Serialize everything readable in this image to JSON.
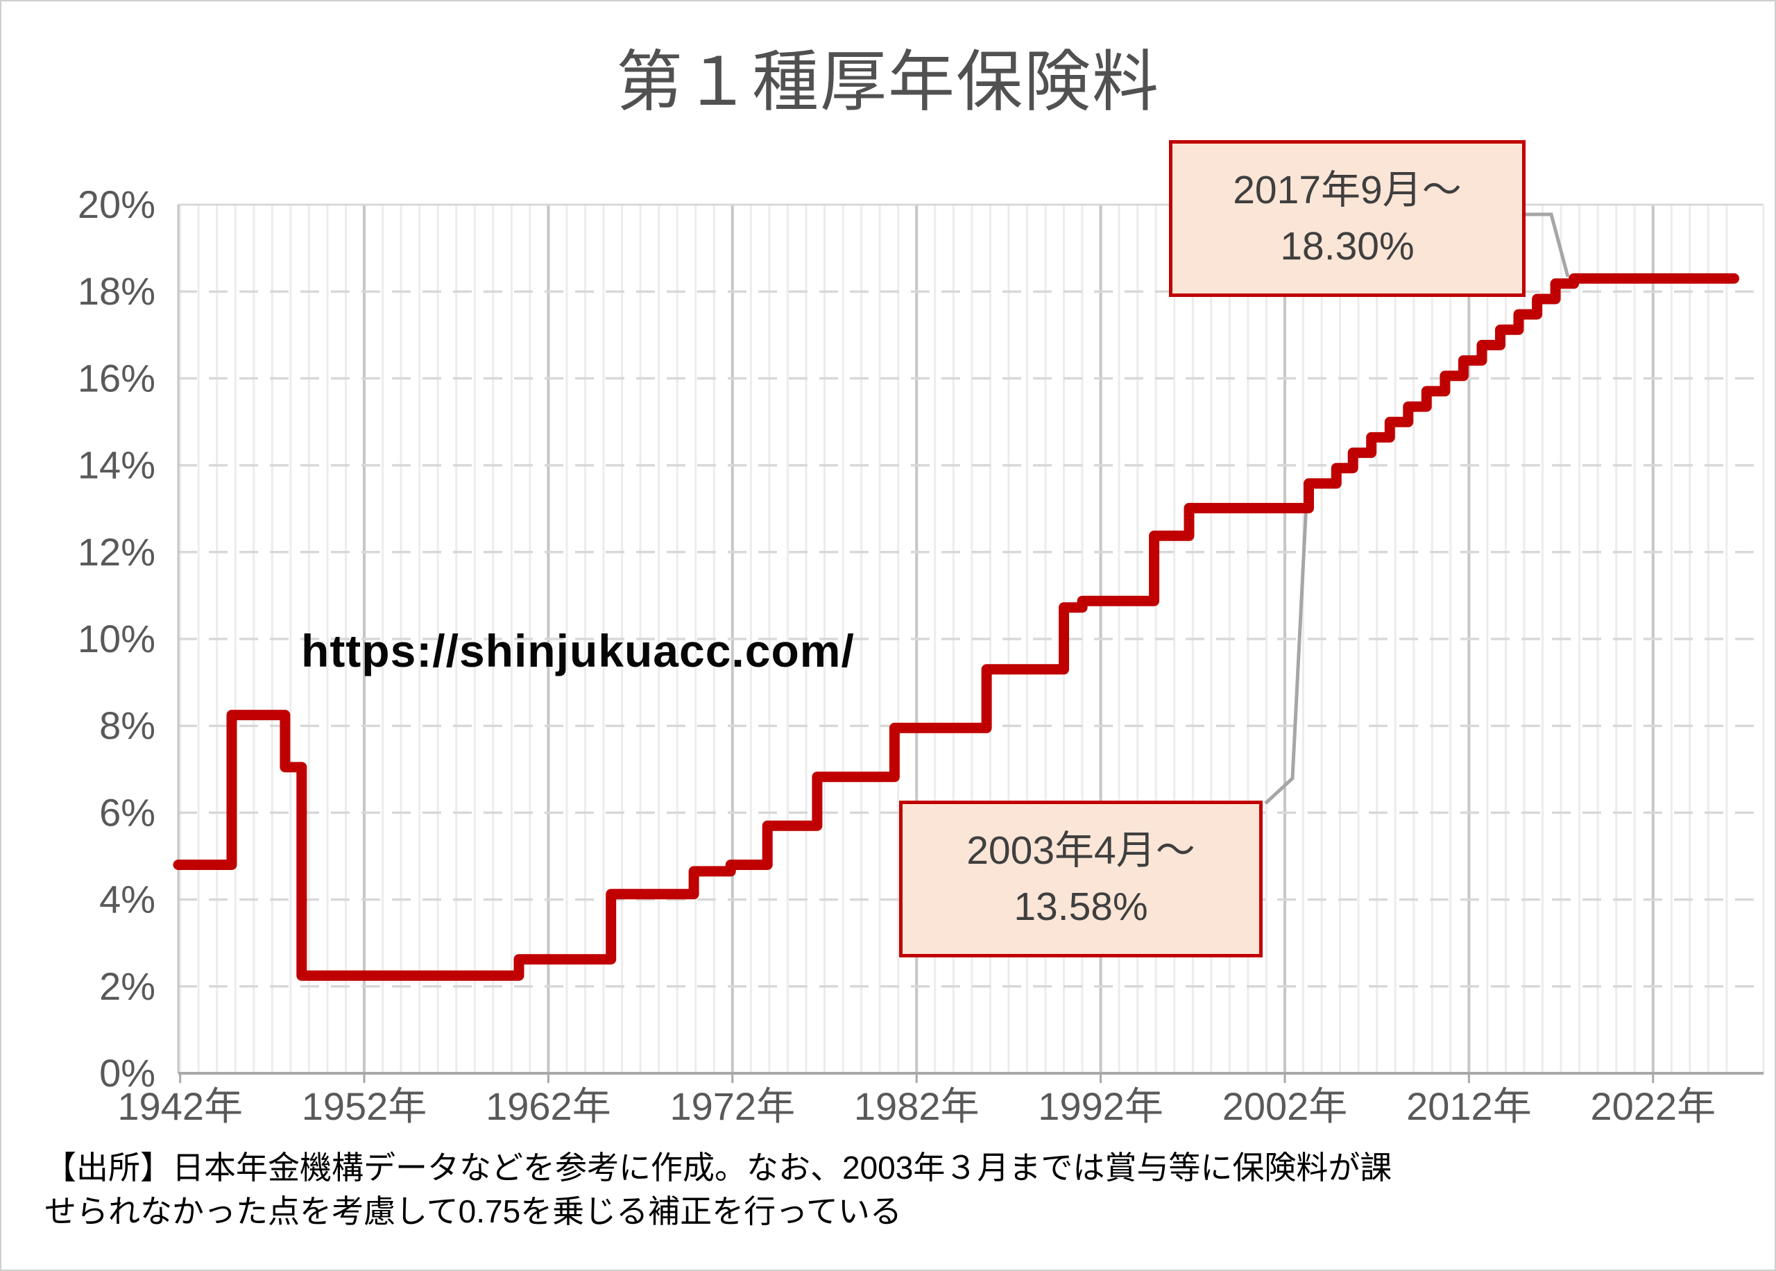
{
  "title": "第１種厚年保険料",
  "watermark": "https://shinjukuacc.com/",
  "source_note": {
    "line1": "【出所】日本年金機構データなどを参考に作成。なお、2003年３月までは賞与等に保険料が課",
    "line2": "せられなかった点を考慮して0.75を乗じる補正を行っている"
  },
  "callouts": [
    {
      "id": "2017",
      "line1": "2017年9月～",
      "line2": "18.30%",
      "target_year": 2017.7,
      "target_value": 18.3
    },
    {
      "id": "2003",
      "line1": "2003年4月～",
      "line2": "13.58%",
      "target_year": 2003.3,
      "target_value": 13.58
    }
  ],
  "colors": {
    "series_red": "#c00000",
    "callout_fill": "#fbe5d6",
    "callout_border": "#c00000",
    "leader_gray": "#a6a6a6",
    "grid_minor": "#ececec",
    "grid_major": "#c6c6c6",
    "grid_dashed": "#d8d8d8",
    "axis_line": "#a8a8a8",
    "axis_label": "#595959",
    "title_text": "#515151"
  },
  "chart_data": {
    "type": "line",
    "title": "第１種厚年保険料",
    "xlabel": "",
    "ylabel": "",
    "x_range": [
      1941.9,
      2028.0
    ],
    "y_range": [
      0,
      20
    ],
    "grid": {
      "x_minor_step_years": 1,
      "x_major_step_years": 10,
      "y_dashed_step_pct": 2,
      "first_year_line": 1942,
      "last_year_line": 2026
    },
    "x_ticks": [
      {
        "year": 1942,
        "label": "1942年"
      },
      {
        "year": 1952,
        "label": "1952年"
      },
      {
        "year": 1962,
        "label": "1962年"
      },
      {
        "year": 1972,
        "label": "1972年"
      },
      {
        "year": 1982,
        "label": "1982年"
      },
      {
        "year": 1992,
        "label": "1992年"
      },
      {
        "year": 2002,
        "label": "2002年"
      },
      {
        "year": 2012,
        "label": "2012年"
      },
      {
        "year": 2022,
        "label": "2022年"
      }
    ],
    "y_ticks": [
      {
        "value": 0,
        "label": "0%"
      },
      {
        "value": 2,
        "label": "2%"
      },
      {
        "value": 4,
        "label": "4%"
      },
      {
        "value": 6,
        "label": "6%"
      },
      {
        "value": 8,
        "label": "8%"
      },
      {
        "value": 10,
        "label": "10%"
      },
      {
        "value": 12,
        "label": "12%"
      },
      {
        "value": 14,
        "label": "14%"
      },
      {
        "value": 16,
        "label": "16%"
      },
      {
        "value": 18,
        "label": "18%"
      },
      {
        "value": 20,
        "label": "20%"
      }
    ],
    "series": [
      {
        "name": "第1種厚年保険料率",
        "color": "#c00000",
        "style": "step-after",
        "end_year": 2026.4,
        "step_points": [
          [
            1942.0,
            4.8
          ],
          [
            1944.8,
            8.25
          ],
          [
            1947.7,
            7.05
          ],
          [
            1948.6,
            2.25
          ],
          [
            1960.4,
            2.625
          ],
          [
            1965.4,
            4.125
          ],
          [
            1969.9,
            4.65
          ],
          [
            1971.9,
            4.8
          ],
          [
            1973.9,
            5.7
          ],
          [
            1976.6,
            6.825
          ],
          [
            1980.8,
            7.95
          ],
          [
            1985.8,
            9.3
          ],
          [
            1990.0,
            10.725
          ],
          [
            1991.0,
            10.875
          ],
          [
            1994.9,
            12.375
          ],
          [
            1996.8,
            13.0125
          ],
          [
            2003.3,
            13.58
          ],
          [
            2004.8,
            13.934
          ],
          [
            2005.7,
            14.288
          ],
          [
            2006.7,
            14.642
          ],
          [
            2007.7,
            14.996
          ],
          [
            2008.7,
            15.35
          ],
          [
            2009.7,
            15.704
          ],
          [
            2010.7,
            16.058
          ],
          [
            2011.7,
            16.412
          ],
          [
            2012.7,
            16.766
          ],
          [
            2013.7,
            17.12
          ],
          [
            2014.7,
            17.474
          ],
          [
            2015.7,
            17.828
          ],
          [
            2016.7,
            18.182
          ],
          [
            2017.7,
            18.3
          ]
        ]
      }
    ],
    "annotations": [
      {
        "text": "2017年9月～ 18.30%",
        "target_year": 2017.7,
        "target_value": 18.3
      },
      {
        "text": "2003年4月～ 13.58%",
        "target_year": 2003.3,
        "target_value": 13.58
      }
    ],
    "legend": "none"
  }
}
